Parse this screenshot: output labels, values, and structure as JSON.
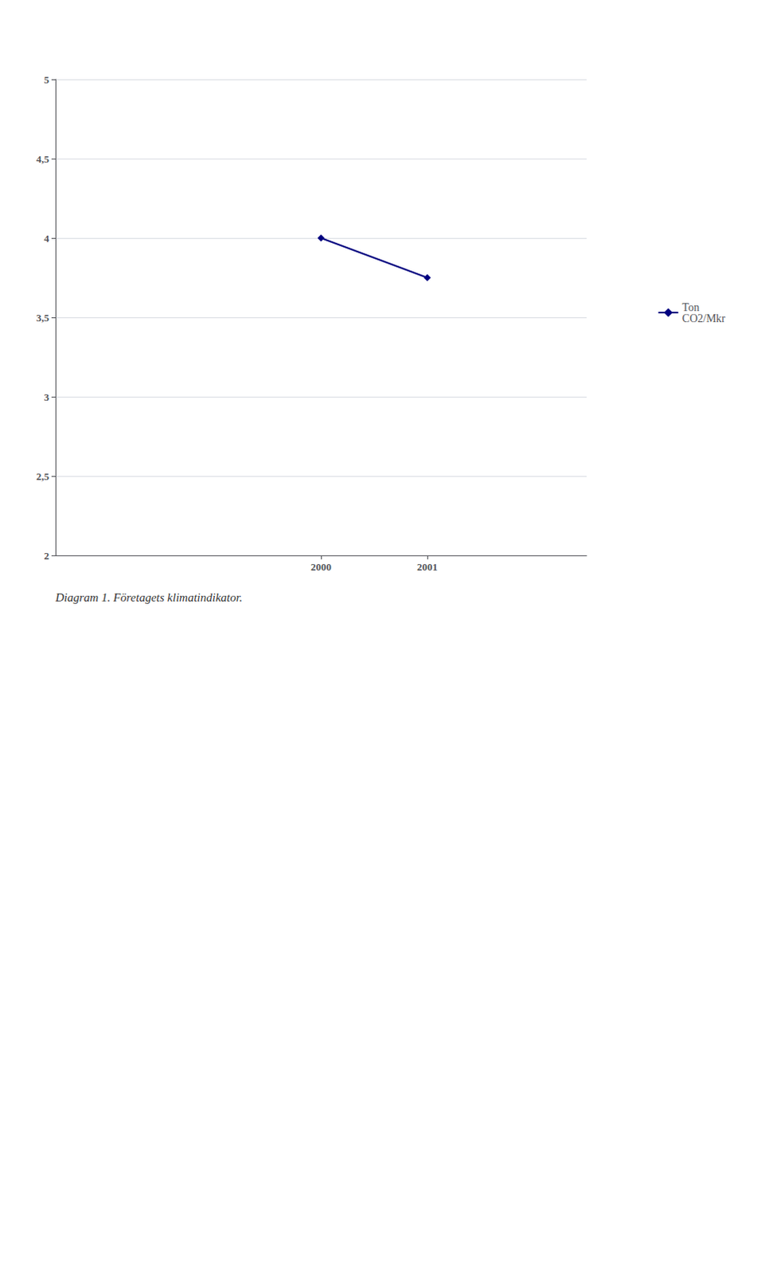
{
  "chart_data": {
    "type": "line",
    "caption": "Diagram 1. Företagets klimatindikator.",
    "x": [
      2000,
      2001
    ],
    "series": [
      {
        "name": "Ton\nCO2/Mkr",
        "color": "#000080",
        "marker": "diamond",
        "values": [
          4.0,
          3.75
        ]
      }
    ],
    "xlim": [
      1997.5,
      2002.5
    ],
    "xticks": [
      2000,
      2001
    ],
    "ylim": [
      2,
      5
    ],
    "yticks": [
      2,
      {
        "value": 2.5,
        "label": "2,5"
      },
      3,
      {
        "value": 3.5,
        "label": "3,5"
      },
      4,
      {
        "value": 4.5,
        "label": "4,5"
      },
      5
    ],
    "grid": true,
    "legend": "right"
  }
}
